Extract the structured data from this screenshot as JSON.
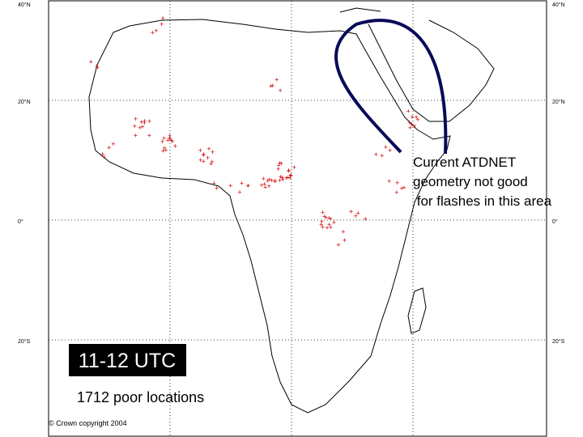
{
  "map": {
    "lat_labels_left": [
      "40°N",
      "20°N",
      "0°",
      "20°S"
    ],
    "lat_labels_right": [
      "40°N",
      "20°N",
      "0°",
      "20°S"
    ],
    "annotation": [
      "Current ATDNET",
      " geometry not good",
      " for flashes in this area"
    ],
    "time_label": "11-12 UTC",
    "count_label": "1712 poor locations",
    "copyright": "© Crown copyright 2004"
  }
}
